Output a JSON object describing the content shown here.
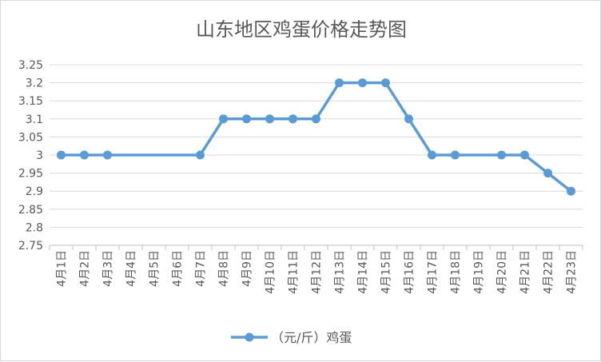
{
  "chart_data": {
    "type": "line",
    "title": "山东地区鸡蛋价格走势图",
    "xlabel": "",
    "ylabel": "",
    "categories": [
      "4月1日",
      "4月2日",
      "4月3日",
      "4月4日",
      "4月5日",
      "4月6日",
      "4月7日",
      "4月8日",
      "4月9日",
      "4月10日",
      "4月11日",
      "4月12日",
      "4月13日",
      "4月14日",
      "4月15日",
      "4月16日",
      "4月17日",
      "4月18日",
      "4月19日",
      "4月20日",
      "4月21日",
      "4月22日",
      "4月23日"
    ],
    "series": [
      {
        "name": "（元/斤）鸡蛋",
        "values": [
          3.0,
          3.0,
          3.0,
          null,
          null,
          null,
          3.0,
          3.1,
          3.1,
          3.1,
          3.1,
          3.1,
          3.2,
          3.2,
          3.2,
          3.1,
          3.0,
          3.0,
          null,
          3.0,
          3.0,
          2.95,
          2.9
        ],
        "color": "#5b9bd5"
      }
    ],
    "ylim": [
      2.75,
      3.25
    ],
    "yticks": [
      "2.75",
      "2.8",
      "2.85",
      "2.9",
      "2.95",
      "3",
      "3.05",
      "3.1",
      "3.15",
      "3.2",
      "3.25"
    ],
    "grid": true,
    "legend": "bottom"
  }
}
